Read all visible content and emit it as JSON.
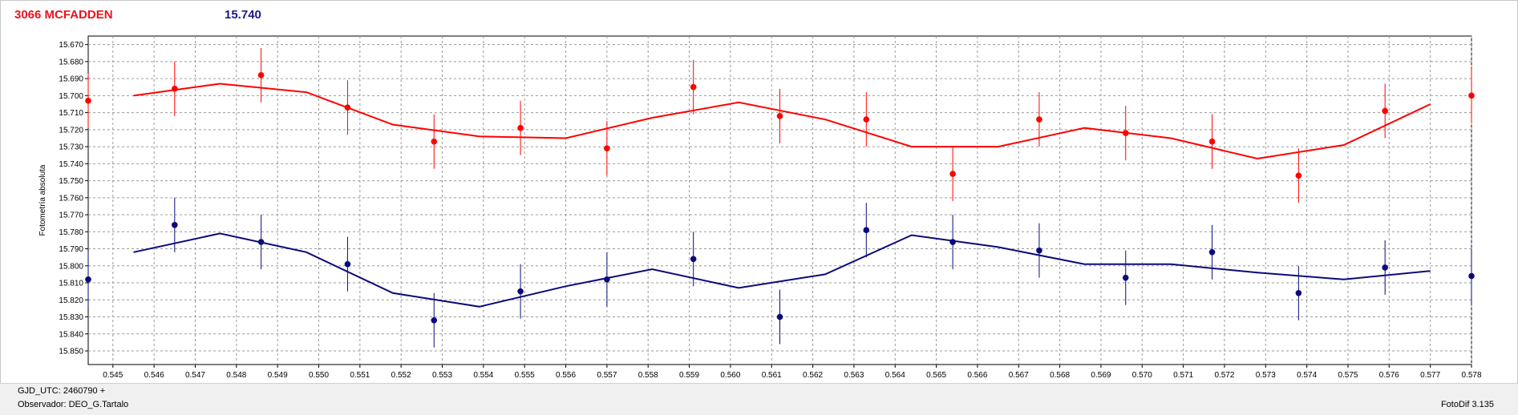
{
  "header": {
    "object_name": "3066 MCFADDEN",
    "magnitude": "15.740"
  },
  "footer": {
    "gjd": "GJD_UTC: 2460790  +",
    "observer": "Observador: DEO_G.Tartalo",
    "software": "FotoDif 3.135"
  },
  "colors": {
    "red_series": "#ff0000",
    "blue_series": "#0a0a7a"
  },
  "chart_data": {
    "type": "scatter",
    "ylabel": "Fotometría absoluta",
    "xlabel": "",
    "xlim": [
      0.5444,
      0.578
    ],
    "ylim": [
      15.665,
      15.858
    ],
    "y_inverted": true,
    "grid": true,
    "x_ticks": [
      "0.545",
      "0.546",
      "0.547",
      "0.548",
      "0.549",
      "0.550",
      "0.551",
      "0.552",
      "0.553",
      "0.554",
      "0.555",
      "0.556",
      "0.557",
      "0.558",
      "0.559",
      "0.560",
      "0.561",
      "0.562",
      "0.563",
      "0.564",
      "0.565",
      "0.566",
      "0.567",
      "0.568",
      "0.569",
      "0.570",
      "0.571",
      "0.572",
      "0.573",
      "0.574",
      "0.575",
      "0.576",
      "0.577",
      "0.578"
    ],
    "y_ticks": [
      "15.670",
      "15.680",
      "15.690",
      "15.700",
      "15.710",
      "15.720",
      "15.730",
      "15.740",
      "15.750",
      "15.760",
      "15.770",
      "15.780",
      "15.790",
      "15.800",
      "15.810",
      "15.820",
      "15.830",
      "15.840",
      "15.850"
    ],
    "series": [
      {
        "color": "#ff0000",
        "points": [
          {
            "x": 0.5444,
            "y": 15.703,
            "err": 0.016
          },
          {
            "x": 0.5465,
            "y": 15.696,
            "err": 0.016
          },
          {
            "x": 0.5486,
            "y": 15.688,
            "err": 0.016
          },
          {
            "x": 0.5507,
            "y": 15.707,
            "err": 0.016
          },
          {
            "x": 0.5528,
            "y": 15.727,
            "err": 0.016
          },
          {
            "x": 0.5549,
            "y": 15.719,
            "err": 0.016
          },
          {
            "x": 0.557,
            "y": 15.731,
            "err": 0.016
          },
          {
            "x": 0.5591,
            "y": 15.695,
            "err": 0.016
          },
          {
            "x": 0.5612,
            "y": 15.712,
            "err": 0.016
          },
          {
            "x": 0.5633,
            "y": 15.714,
            "err": 0.016
          },
          {
            "x": 0.5654,
            "y": 15.746,
            "err": 0.016
          },
          {
            "x": 0.5675,
            "y": 15.714,
            "err": 0.016
          },
          {
            "x": 0.5696,
            "y": 15.722,
            "err": 0.016
          },
          {
            "x": 0.5717,
            "y": 15.727,
            "err": 0.016
          },
          {
            "x": 0.5738,
            "y": 15.747,
            "err": 0.016
          },
          {
            "x": 0.5759,
            "y": 15.709,
            "err": 0.016
          },
          {
            "x": 0.578,
            "y": 15.7,
            "err": 0.016
          }
        ],
        "fit": [
          {
            "x": 0.5455,
            "y": 15.7
          },
          {
            "x": 0.5476,
            "y": 15.693
          },
          {
            "x": 0.5497,
            "y": 15.698
          },
          {
            "x": 0.5518,
            "y": 15.717
          },
          {
            "x": 0.5539,
            "y": 15.724
          },
          {
            "x": 0.556,
            "y": 15.725
          },
          {
            "x": 0.5581,
            "y": 15.713
          },
          {
            "x": 0.5602,
            "y": 15.704
          },
          {
            "x": 0.5623,
            "y": 15.714
          },
          {
            "x": 0.5644,
            "y": 15.73
          },
          {
            "x": 0.5665,
            "y": 15.73
          },
          {
            "x": 0.5686,
            "y": 15.719
          },
          {
            "x": 0.5707,
            "y": 15.725
          },
          {
            "x": 0.5728,
            "y": 15.737
          },
          {
            "x": 0.5749,
            "y": 15.729
          },
          {
            "x": 0.577,
            "y": 15.705
          }
        ]
      },
      {
        "color": "#0a0a7a",
        "points": [
          {
            "x": 0.5444,
            "y": 15.808,
            "err": 0.016
          },
          {
            "x": 0.5465,
            "y": 15.776,
            "err": 0.016
          },
          {
            "x": 0.5486,
            "y": 15.786,
            "err": 0.016
          },
          {
            "x": 0.5507,
            "y": 15.799,
            "err": 0.016
          },
          {
            "x": 0.5528,
            "y": 15.832,
            "err": 0.016
          },
          {
            "x": 0.5549,
            "y": 15.815,
            "err": 0.016
          },
          {
            "x": 0.557,
            "y": 15.808,
            "err": 0.016
          },
          {
            "x": 0.5591,
            "y": 15.796,
            "err": 0.016
          },
          {
            "x": 0.5612,
            "y": 15.83,
            "err": 0.016
          },
          {
            "x": 0.5633,
            "y": 15.779,
            "err": 0.016
          },
          {
            "x": 0.5654,
            "y": 15.786,
            "err": 0.016
          },
          {
            "x": 0.5675,
            "y": 15.791,
            "err": 0.016
          },
          {
            "x": 0.5696,
            "y": 15.807,
            "err": 0.016
          },
          {
            "x": 0.5717,
            "y": 15.792,
            "err": 0.016
          },
          {
            "x": 0.5738,
            "y": 15.816,
            "err": 0.016
          },
          {
            "x": 0.5759,
            "y": 15.801,
            "err": 0.016
          },
          {
            "x": 0.578,
            "y": 15.806,
            "err": 0.016
          }
        ],
        "fit": [
          {
            "x": 0.5455,
            "y": 15.792
          },
          {
            "x": 0.5476,
            "y": 15.781
          },
          {
            "x": 0.5497,
            "y": 15.792
          },
          {
            "x": 0.5518,
            "y": 15.816
          },
          {
            "x": 0.5539,
            "y": 15.824
          },
          {
            "x": 0.556,
            "y": 15.812
          },
          {
            "x": 0.5581,
            "y": 15.802
          },
          {
            "x": 0.5602,
            "y": 15.813
          },
          {
            "x": 0.5623,
            "y": 15.805
          },
          {
            "x": 0.5644,
            "y": 15.782
          },
          {
            "x": 0.5665,
            "y": 15.789
          },
          {
            "x": 0.5686,
            "y": 15.799
          },
          {
            "x": 0.5707,
            "y": 15.799
          },
          {
            "x": 0.5728,
            "y": 15.804
          },
          {
            "x": 0.5749,
            "y": 15.808
          },
          {
            "x": 0.577,
            "y": 15.803
          }
        ]
      }
    ]
  }
}
